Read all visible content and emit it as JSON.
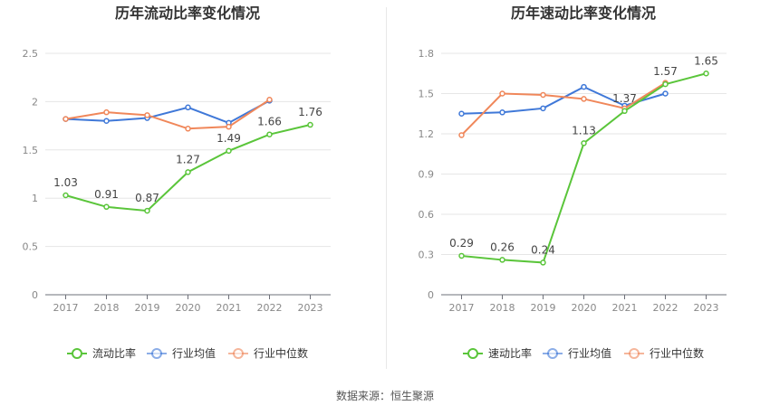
{
  "source": {
    "label": "数据来源：",
    "value": "恒生聚源"
  },
  "colors": {
    "company": "#5ac53a",
    "industry_avg": "#3f78d8",
    "industry_median": "#f0875a"
  },
  "chart_data": [
    {
      "type": "line",
      "title": "历年流动比率变化情况",
      "categories": [
        "2017",
        "2018",
        "2019",
        "2020",
        "2021",
        "2022",
        "2023"
      ],
      "ylim": [
        0,
        2.5
      ],
      "yticks": [
        "0",
        "0.5",
        "1",
        "1.5",
        "2",
        "2.5"
      ],
      "grid": true,
      "legend_position": "bottom",
      "series": [
        {
          "name": "流动比率",
          "values": [
            1.03,
            0.91,
            0.87,
            1.27,
            1.49,
            1.66,
            1.76
          ],
          "labels": [
            "1.03",
            "0.91",
            "0.87",
            "1.27",
            "1.49",
            "1.66",
            "1.76"
          ]
        },
        {
          "name": "行业均值",
          "values": [
            1.82,
            1.8,
            1.83,
            1.94,
            1.78,
            2.01,
            null
          ]
        },
        {
          "name": "行业中位数",
          "values": [
            1.82,
            1.89,
            1.86,
            1.72,
            1.74,
            2.02,
            null
          ]
        }
      ]
    },
    {
      "type": "line",
      "title": "历年速动比率变化情况",
      "categories": [
        "2017",
        "2018",
        "2019",
        "2020",
        "2021",
        "2022",
        "2023"
      ],
      "ylim": [
        0,
        1.8
      ],
      "yticks": [
        "0",
        "0.3",
        "0.6",
        "0.9",
        "1.2",
        "1.5",
        "1.8"
      ],
      "grid": true,
      "legend_position": "bottom",
      "series": [
        {
          "name": "速动比率",
          "values": [
            0.29,
            0.26,
            0.24,
            1.13,
            1.37,
            1.57,
            1.65
          ],
          "labels": [
            "0.29",
            "0.26",
            "0.24",
            "1.13",
            "1.37",
            "1.57",
            "1.65"
          ]
        },
        {
          "name": "行业均值",
          "values": [
            1.35,
            1.36,
            1.39,
            1.55,
            1.41,
            1.5,
            null
          ]
        },
        {
          "name": "行业中位数",
          "values": [
            1.19,
            1.5,
            1.49,
            1.46,
            1.39,
            1.58,
            null
          ]
        }
      ]
    }
  ]
}
